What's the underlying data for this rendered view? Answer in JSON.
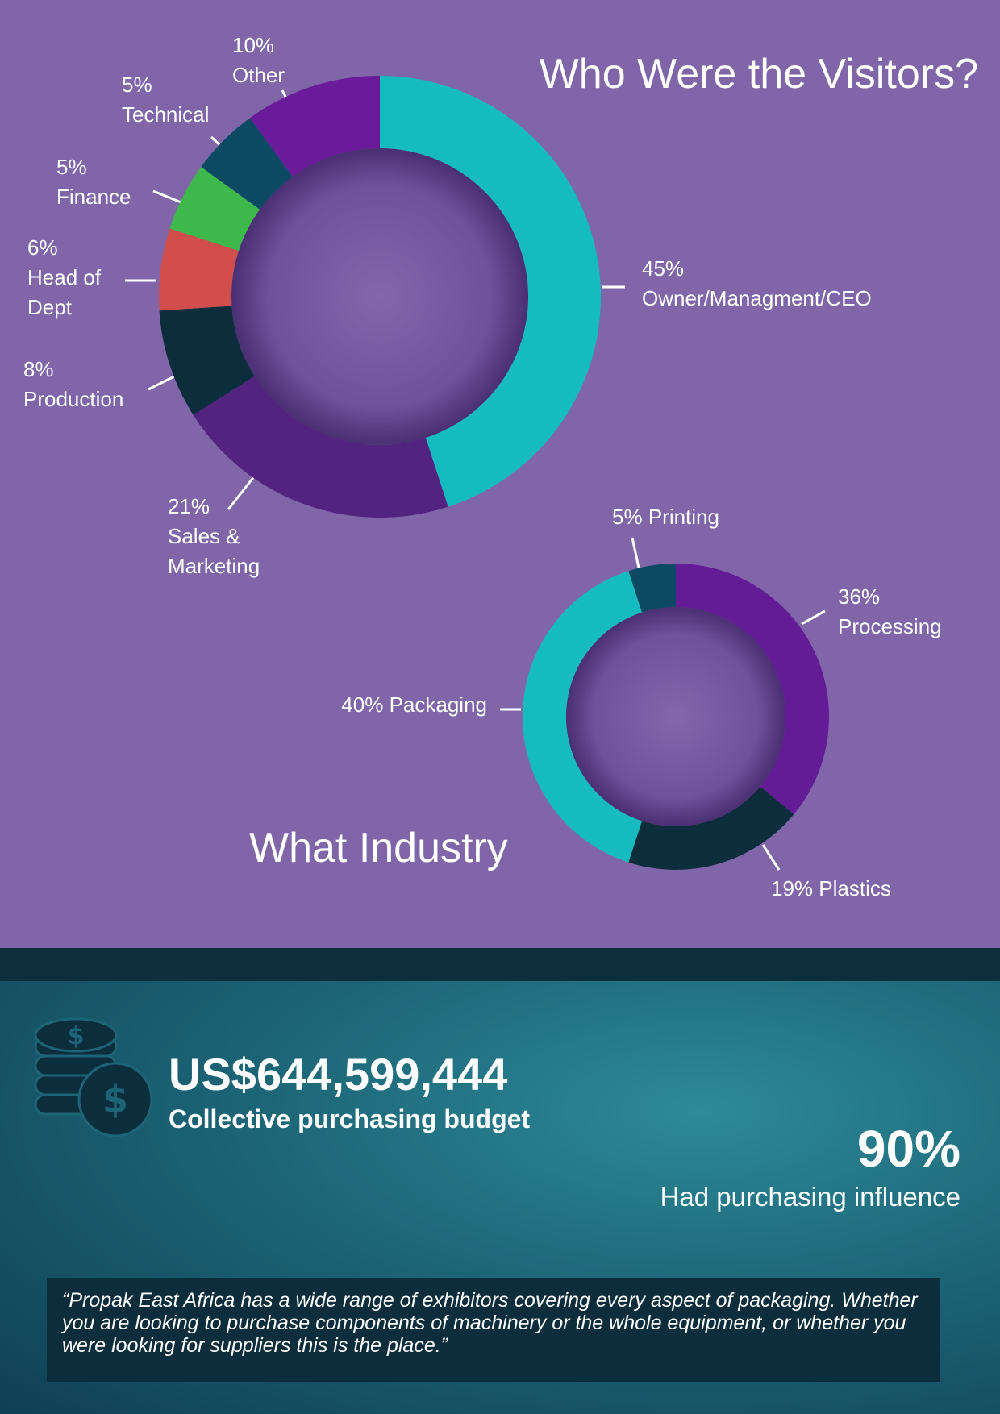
{
  "chart_data": [
    {
      "type": "donut",
      "title": "Who Were the Visitors?",
      "categories": [
        "Owner/Managment/CEO",
        "Sales & Marketing",
        "Production",
        "Head of Dept",
        "Finance",
        "Technical",
        "Other"
      ],
      "values": [
        45,
        21,
        8,
        6,
        5,
        5,
        10
      ],
      "value_labels": [
        "45%",
        "21%",
        "8%",
        "6%",
        "5%",
        "5%",
        "10%"
      ],
      "colors": [
        "#14bcbf",
        "#52237f",
        "#0c2d3c",
        "#d14e4d",
        "#3db84b",
        "#0c4a63",
        "#6a1b9a"
      ]
    },
    {
      "type": "donut",
      "title": "What Industry",
      "categories": [
        "Processing",
        "Plastics",
        "Packaging",
        "Printing"
      ],
      "values": [
        36,
        19,
        40,
        5
      ],
      "value_labels": [
        "36%",
        "19%",
        "40%",
        "5%"
      ],
      "colors": [
        "#641b96",
        "#0c2d3c",
        "#14bcbf",
        "#0c4a63"
      ]
    }
  ],
  "stats": [
    {
      "value": "US$644,599,444",
      "label": "Collective purchasing budget"
    },
    {
      "value": "90%",
      "label": "Had purchasing influence"
    }
  ],
  "quote": "“Propak East Africa has a wide range of exhibitors covering every aspect of packaging. Whether you are looking to purchase components of machinery or the whole equipment, or whether you were looking for suppliers this is the place.”"
}
